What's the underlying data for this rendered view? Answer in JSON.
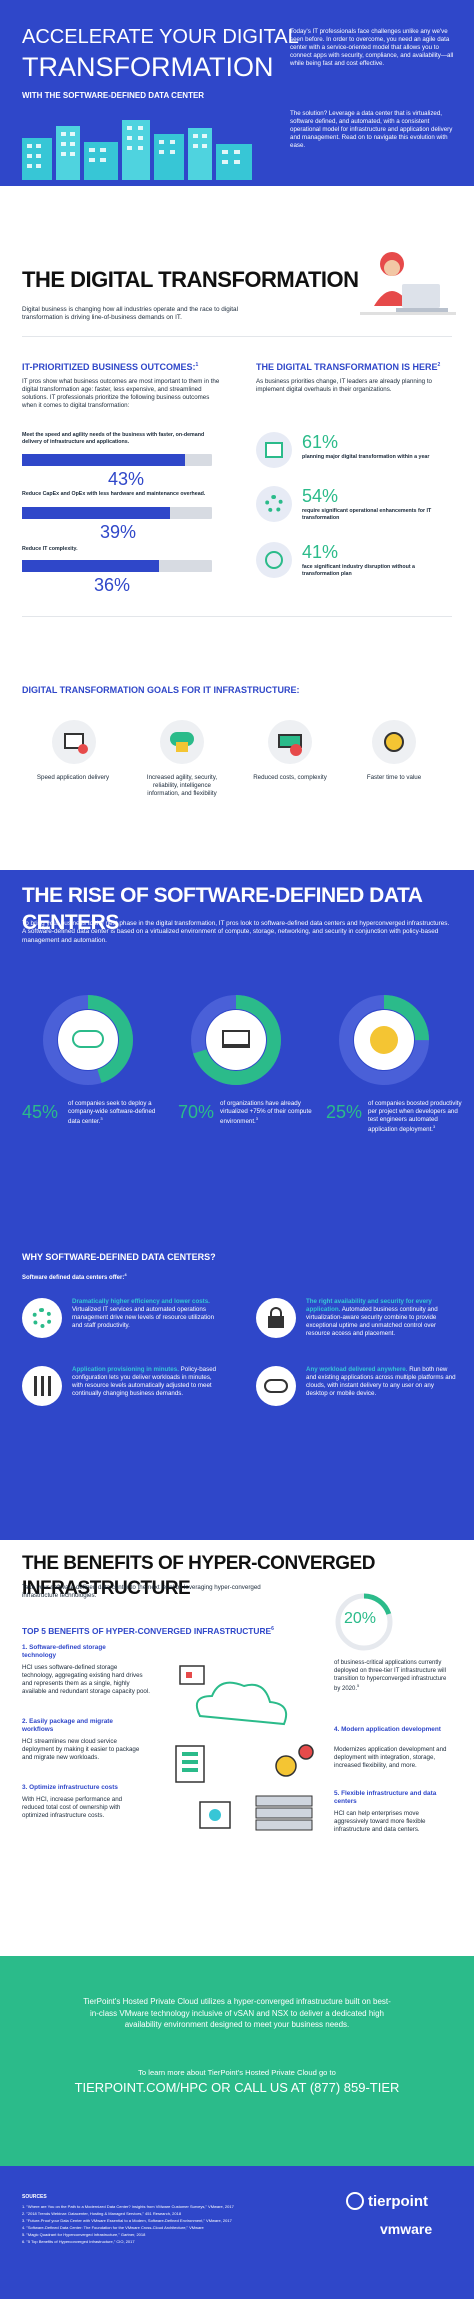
{
  "hero": {
    "title_line1": "ACCELERATE YOUR DIGITAL",
    "title_line2": "TRANSFORMATION",
    "subtitle": "WITH THE SOFTWARE-DEFINED DATA CENTER",
    "para1": "Today's IT professionals face challenges unlike any we've seen before. In order to overcome, you need an agile data center with a service-oriented model that allows you to connect apps with security, compliance, and availability—all while being fast and cost effective.",
    "para2": "The solution? Leverage a data center that is virtualized, software defined, and automated, with a consistent operational model for infrastructure and application delivery and management. Read on to navigate this evolution with ease."
  },
  "digital": {
    "title": "THE DIGITAL TRANSFORMATION",
    "intro": "Digital business is changing how all industries operate and the race to digital transformation is driving line-of-business demands on IT."
  },
  "outcomes": {
    "heading": "IT-PRIORITIZED BUSINESS OUTCOMES:",
    "heading_sup": "1",
    "body": "IT pros show what business outcomes are most important to them in the digital transformation age: faster, less expensive, and streamlined solutions. IT professionals prioritize the following business outcomes when it comes to digital transformation:",
    "items": [
      {
        "label": "Meet the speed and agility needs of the business with faster, on-demand delivery of infrastructure and applications.",
        "value": 43,
        "display": "43%"
      },
      {
        "label": "Reduce CapEx and OpEx with less hardware and maintenance overhead.",
        "value": 39,
        "display": "39%"
      },
      {
        "label": "Reduce IT complexity.",
        "value": 36,
        "display": "36%"
      }
    ]
  },
  "here": {
    "heading": "THE DIGITAL TRANSFORMATION IS HERE",
    "heading_sup": "2",
    "body": "As business priorities change, IT leaders are already planning to implement digital overhauls in their organizations.",
    "stats": [
      {
        "value": "61%",
        "label": "planning major digital transformation within a year",
        "icon": "calendar-icon"
      },
      {
        "value": "54%",
        "label": "require significant operational enhancements for IT transformation",
        "icon": "gears-icon"
      },
      {
        "value": "41%",
        "label": "face significant industry disruption without a transformation plan",
        "icon": "clock-icon"
      }
    ]
  },
  "goals": {
    "heading": "DIGITAL TRANSFORMATION GOALS FOR IT INFRASTRUCTURE:",
    "items": [
      {
        "label": "Speed application delivery",
        "icon": "app-window-icon"
      },
      {
        "label": "Increased agility, security, reliability, intelligence information, and flexibility",
        "icon": "cloud-lock-icon"
      },
      {
        "label": "Reduced costs, complexity",
        "icon": "money-icon"
      },
      {
        "label": "Faster time to value",
        "icon": "stopwatch-icon"
      }
    ]
  },
  "sddc": {
    "title": "THE RISE OF SOFTWARE-DEFINED DATA CENTERS",
    "intro": "To bring your business to the next phase in the digital transformation, IT pros look to software-defined data centers and hyperconverged infrastructures. A software-defined data center is based on a virtualized environment of compute, storage, networking, and security in conjunction with policy-based management and automation.",
    "stats": [
      {
        "value": "45%",
        "text": "of companies seek to deploy a company-wide software-defined data center.",
        "sup": "3",
        "fill": 45,
        "icon": "cloud-servers-icon"
      },
      {
        "value": "70%",
        "text": "of organizations have already virtualized +75% of their compute environment.",
        "sup": "3",
        "fill": 70,
        "icon": "laptop-cloud-icon"
      },
      {
        "value": "25%",
        "text": "of companies boosted productivity per project when developers and test engineers automated application deployment.",
        "sup": "3",
        "fill": 25,
        "icon": "gear-icon"
      }
    ],
    "why_heading": "WHY SOFTWARE-DEFINED DATA CENTERS?",
    "why_sub": "Software defined data centers offer:",
    "sup4": "4",
    "benefits": [
      {
        "lead": "Dramatically higher efficiency and lower costs.",
        "body": "Virtualized IT services and automated operations management drive new levels of resource utilization and staff productivity.",
        "icon": "cog-network-icon"
      },
      {
        "lead": "The right availability and security for every application.",
        "body": "Automated business continuity and virtualization-aware security combine to provide exceptional uptime and unmatched control over resource access and placement.",
        "icon": "padlock-icon"
      },
      {
        "lead": "Application provisioning in minutes.",
        "body": "Policy-based configuration lets you deliver workloads in minutes, with resource levels automatically adjusted to meet continually changing business demands.",
        "icon": "sliders-icon"
      },
      {
        "lead": "Any workload delivered anywhere.",
        "body": "Run both new and existing applications across multiple platforms and clouds, with instant delivery to any user on any desktop or mobile device.",
        "icon": "cloud-network-icon"
      }
    ]
  },
  "hci": {
    "title": "THE BENEFITS OF HYPER-CONVERGED INFRASTRUCTURE",
    "intro": "Take your software-defined data center to the next level by leveraging hyper-converged infrastructure technologies.",
    "stat_value": "20%",
    "stat_fill": 20,
    "stat_text": "of business-critical applications currently deployed on three-tier IT infrastructure will transition to hyperconverged infrastructure by 2020.",
    "stat_sup": "5",
    "top5_heading": "TOP 5 BENEFITS OF HYPER-CONVERGED INFRASTRUCTURE",
    "top5_sup": "6",
    "benefits": [
      {
        "title": "1. Software-defined storage technology",
        "body": "HCI uses software-defined storage technology, aggregating existing hard drives and represents them as a single, highly available and redundant storage capacity pool."
      },
      {
        "title": "2. Easily package and migrate workflows",
        "body": "HCI streamlines new cloud service deployment by making it easier to package and migrate new workloads."
      },
      {
        "title": "3. Optimize infrastructure costs",
        "body": "With HCI, increase performance and reduced total cost of ownership with optimized infrastructure costs."
      },
      {
        "title": "4. Modern application development",
        "body": "Modernizes application development and deployment with integration, storage, increased flexibility, and more."
      },
      {
        "title": "5. Flexible infrastructure and data centers",
        "body": "HCI can help enterprises move aggressively toward more flexible infrastructure and data centers."
      }
    ]
  },
  "cta": {
    "para": "TierPoint's Hosted Private Cloud utilizes a hyper-converged infrastructure built on best-in-class VMware technology inclusive of vSAN and NSX to deliver a dedicated high availability environment designed to meet your business needs.",
    "learn": "To learn more about TierPoint's Hosted Private Cloud go to",
    "url": "TIERPOINT.COM/HPC OR CALL US AT (877) 859-TIER"
  },
  "footer": {
    "sources_heading": "SOURCES",
    "sources": [
      "1. \"Where are You on the Path to a Modernized Data Center? Insights from VMware Customer Surveys,\" VMware, 2017",
      "2. \"2018 Trends Webinar: Datacenter, Hosting & Managed Services,\" 451 Research, 2018",
      "3. \"Future-Proof your Data Center with VMware Essential to a Modern, Software-Defined Environment,\" VMware, 2017",
      "4. \"Software-Defined Data Center: The Foundation for the VMware Cross-Cloud Architecture,\" VMware",
      "5. \"Magic Quadrant for Hyperconverged Infrastructure,\" Gartner, 2018",
      "6. \"5 Top Benefits of Hyperconverged Infrastructure,\" CIO, 2017"
    ],
    "logo1": "tierpoint",
    "logo2": "vmware"
  },
  "colors": {
    "blue": "#2f47c9",
    "green": "#2bbb8a",
    "cyan": "#37c6d6",
    "red": "#e64a4a",
    "yellow": "#f4c533"
  }
}
